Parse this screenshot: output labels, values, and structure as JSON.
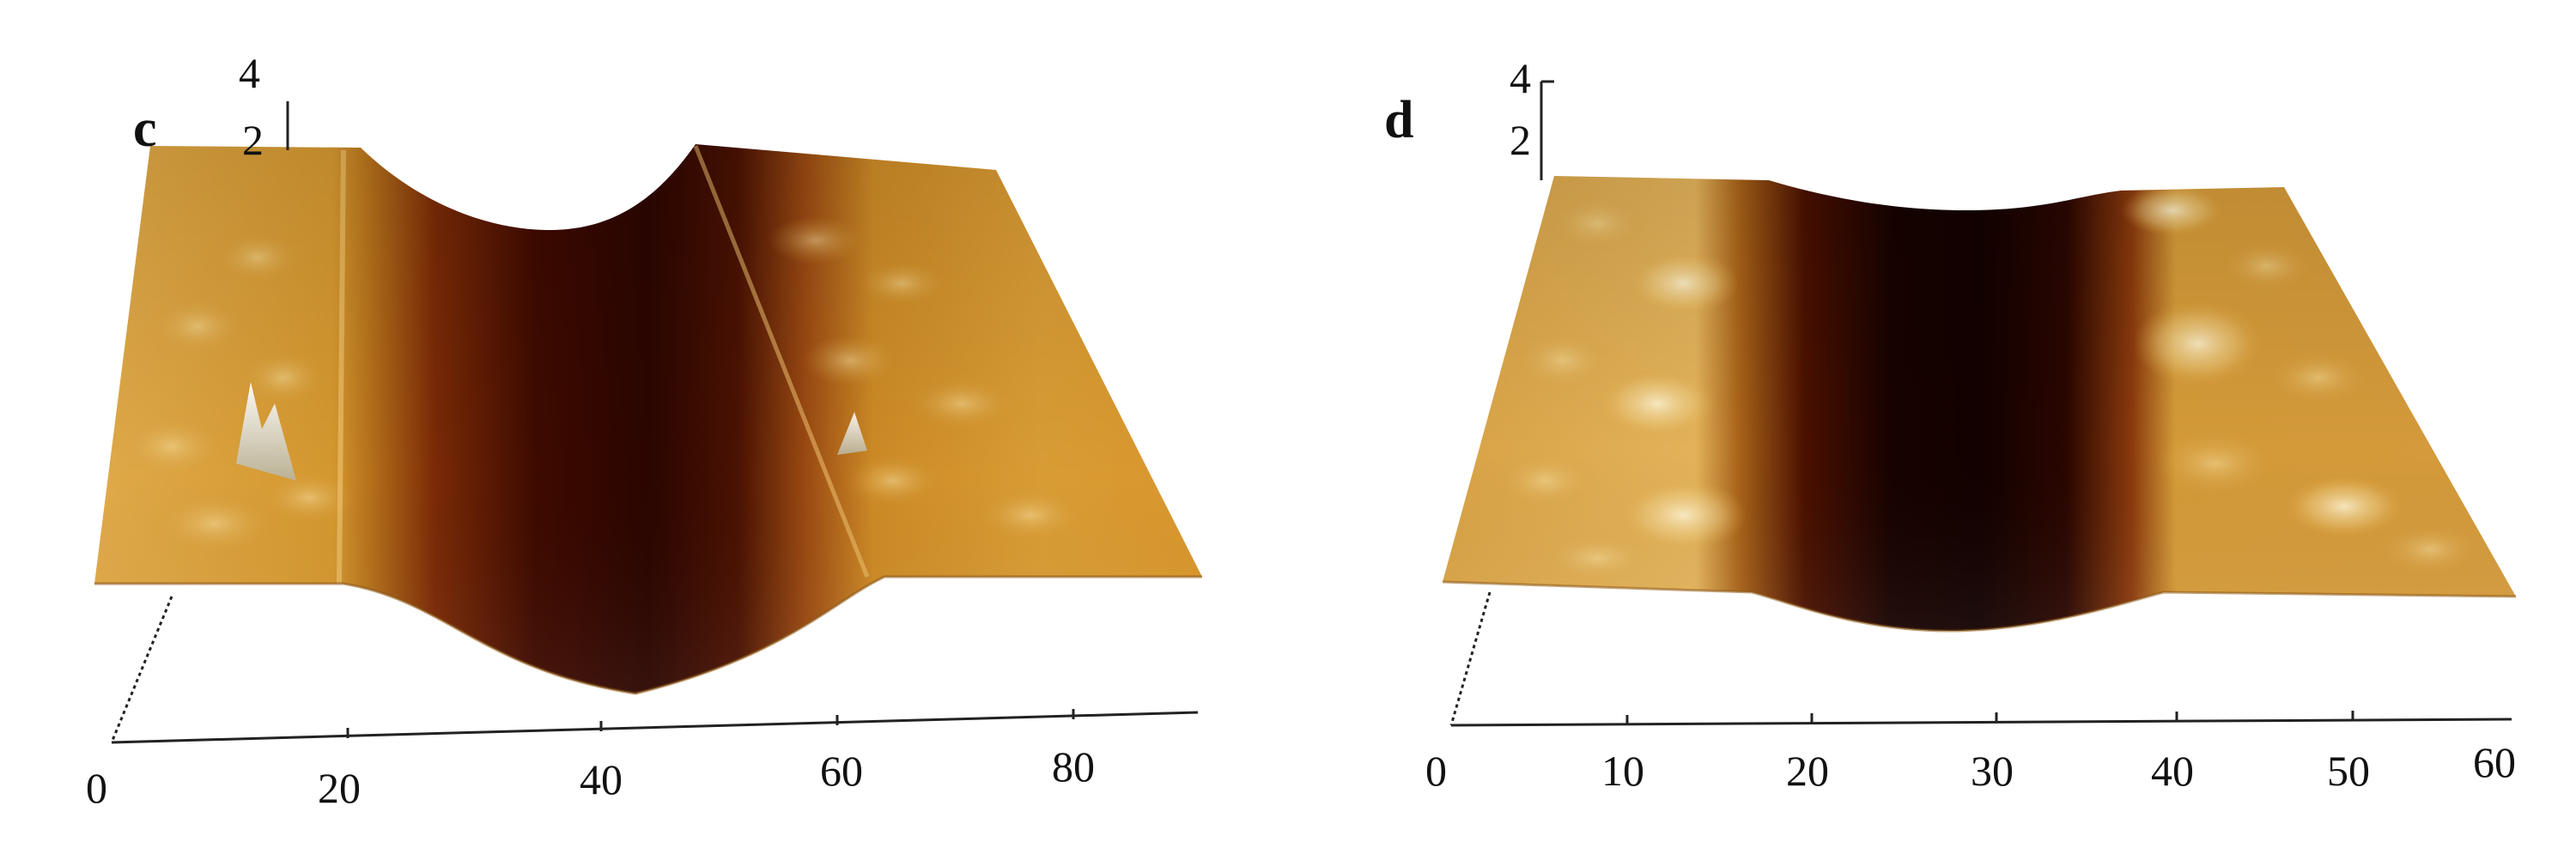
{
  "panels": [
    {
      "letter": "c",
      "z_ticks": [
        "4",
        "2"
      ],
      "x_ticks": [
        "0",
        "20",
        "40",
        "60",
        "80"
      ]
    },
    {
      "letter": "d",
      "z_ticks": [
        "4",
        "2"
      ],
      "x_ticks": [
        "0",
        "10",
        "20",
        "30",
        "40",
        "50",
        "60"
      ]
    }
  ],
  "colors": {
    "surface_light": "#f5e3b0",
    "surface_mid": "#d39a2e",
    "surface_gold": "#c8891d",
    "trench_dark": "#2a0600",
    "trench_brown": "#6b1f05",
    "edge": "#7a4a10",
    "axis": "#222222"
  }
}
